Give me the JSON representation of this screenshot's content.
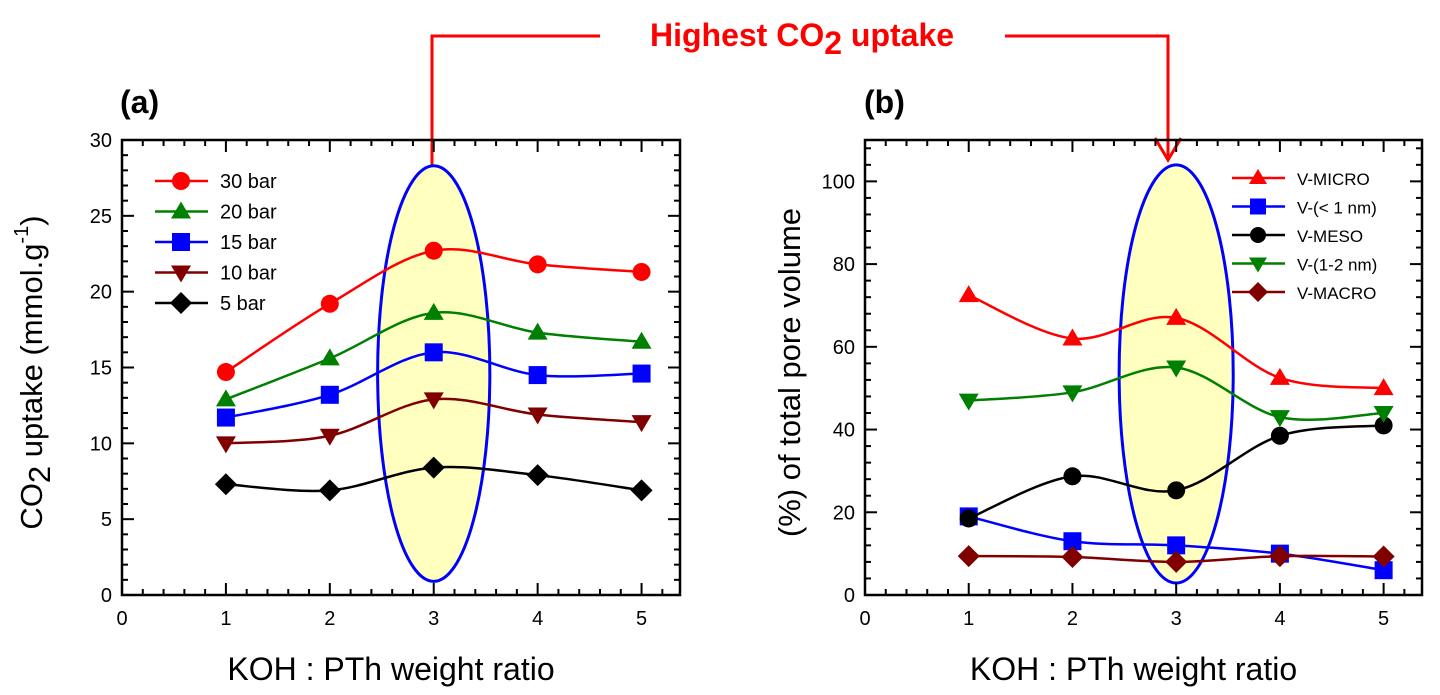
{
  "annotation": {
    "text_main": "Highest CO",
    "text_sub": "2",
    "text_tail": " uptake",
    "color": "#ff0000"
  },
  "chart_data": [
    {
      "type": "line",
      "panel_label": "(a)",
      "xlabel": "KOH : PTh weight ratio",
      "ylabel": {
        "main": "CO",
        "sub": "2",
        "rest": " uptake (mmol.g",
        "sup": "-1",
        "end": ")"
      },
      "xlim": [
        0,
        5.37
      ],
      "ylim": [
        0,
        30
      ],
      "xticks": [
        0,
        1,
        2,
        3,
        4,
        5
      ],
      "yticks": [
        0,
        5,
        10,
        15,
        20,
        25,
        30
      ],
      "yminor": 1,
      "grid": false,
      "legend_position": "top-left",
      "x": [
        1,
        2,
        3,
        4,
        5
      ],
      "series": [
        {
          "name": "30 bar",
          "marker": "circle",
          "color": "#ff0000",
          "values": [
            14.7,
            19.2,
            22.7,
            21.8,
            21.3
          ]
        },
        {
          "name": "20 bar",
          "marker": "triangle-up",
          "color": "#008000",
          "values": [
            12.9,
            15.6,
            18.6,
            17.3,
            16.7
          ]
        },
        {
          "name": "15 bar",
          "marker": "square",
          "color": "#0000ff",
          "values": [
            11.7,
            13.2,
            16.0,
            14.5,
            14.6
          ]
        },
        {
          "name": "10 bar",
          "marker": "triangle-down",
          "color": "#800000",
          "values": [
            10.0,
            10.5,
            12.9,
            11.9,
            11.4
          ]
        },
        {
          "name": "5 bar",
          "marker": "diamond",
          "color": "#000000",
          "values": [
            7.3,
            6.9,
            8.4,
            7.9,
            6.9
          ]
        }
      ],
      "highlight": {
        "x_center": 3,
        "x_halfwidth": 0.54,
        "y_range": [
          0.9,
          28.3
        ],
        "fill": "#ffffc0",
        "stroke": "#0000ff"
      }
    },
    {
      "type": "line",
      "panel_label": "(b)",
      "xlabel": "KOH : PTh weight ratio",
      "ylabel": {
        "main": "(%) of total pore volume"
      },
      "xlim": [
        0,
        5.37
      ],
      "ylim": [
        0,
        110
      ],
      "xticks": [
        0,
        1,
        2,
        3,
        4,
        5
      ],
      "yticks": [
        0,
        20,
        40,
        60,
        80,
        100
      ],
      "yminor": 4,
      "grid": false,
      "legend_position": "top-right",
      "x": [
        1,
        2,
        3,
        4,
        5
      ],
      "series": [
        {
          "name": "V-MICRO",
          "marker": "triangle-up",
          "color": "#ff0000",
          "values": [
            72.5,
            62,
            67,
            52.5,
            50
          ]
        },
        {
          "name": "V-(< 1 nm)",
          "marker": "square",
          "color": "#0000ff",
          "values": [
            19,
            13,
            12,
            10,
            6
          ]
        },
        {
          "name": "V-MESO",
          "marker": "circle",
          "color": "#000000",
          "values": [
            18.5,
            28.7,
            25.3,
            38.5,
            41
          ]
        },
        {
          "name": "V-(1-2 nm)",
          "marker": "triangle-down",
          "color": "#008000",
          "values": [
            47,
            49,
            55,
            43,
            44
          ]
        },
        {
          "name": "V-MACRO",
          "marker": "diamond",
          "color": "#800000",
          "values": [
            9.4,
            9.2,
            8,
            9.4,
            9.3
          ]
        }
      ],
      "highlight": {
        "x_center": 3,
        "x_halfwidth": 0.55,
        "y_range": [
          2.9,
          104
        ],
        "fill": "#ffffc0",
        "stroke": "#0000ff"
      }
    }
  ]
}
